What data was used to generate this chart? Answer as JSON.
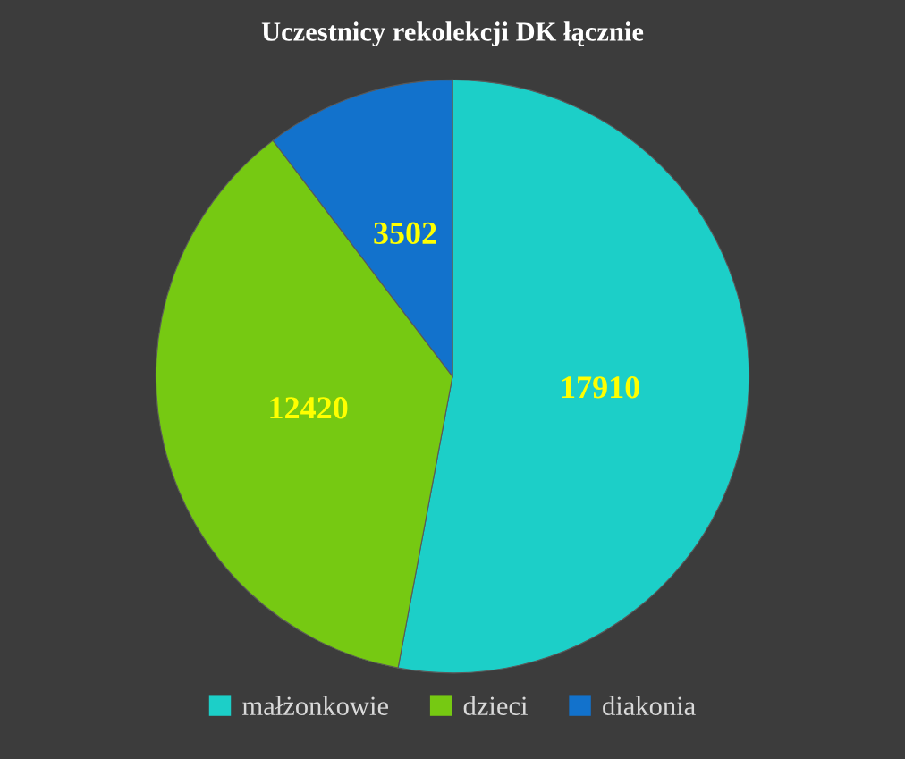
{
  "chart_data": {
    "type": "pie",
    "title": "Uczestnicy rekolekcji DK łącznie",
    "categories": [
      "małżonkowie",
      "dzieci",
      "diakonia"
    ],
    "values": [
      17910,
      12420,
      3502
    ],
    "colors": [
      "#1ccfc8",
      "#76c912",
      "#1272cc"
    ],
    "data_labels": true,
    "legend": "bottom"
  }
}
